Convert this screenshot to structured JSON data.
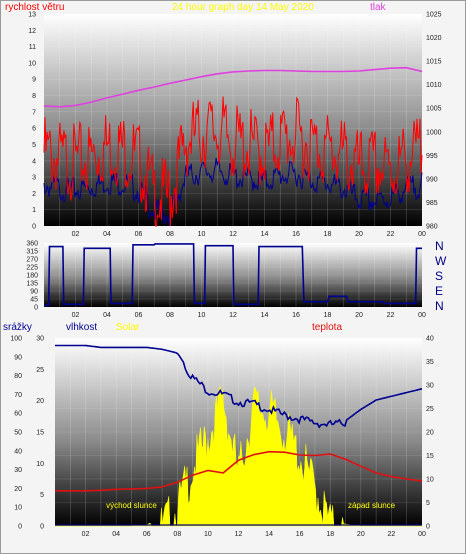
{
  "colors": {
    "wind": "#ff0000",
    "pressure": "#e040e0",
    "title": "#ffff00",
    "wind_dir": "#000090",
    "humidity": "#000090",
    "solar": "#ffff00",
    "temperature": "#e01010",
    "rain": "#000090"
  },
  "chart_data": [
    {
      "type": "line",
      "title": "24 hour graph day  14 May 2020",
      "ylabel": "rychlost větru",
      "y2label": "tlak",
      "x_ticks": [
        "02",
        "04",
        "06",
        "08",
        "10",
        "12",
        "14",
        "16",
        "18",
        "20",
        "22",
        "00"
      ],
      "y_ticks": [
        "0",
        "1",
        "2",
        "3",
        "4",
        "5",
        "6",
        "7",
        "8",
        "9",
        "10",
        "11",
        "12",
        "13"
      ],
      "y2_ticks": [
        "980",
        "985",
        "990",
        "995",
        "1000",
        "1005",
        "1010",
        "1015",
        "1020",
        "1025"
      ],
      "ylim": [
        0,
        13
      ],
      "y2lim": [
        980,
        1025
      ],
      "x_hours": [
        0,
        1,
        2,
        3,
        4,
        5,
        6,
        7,
        8,
        9,
        10,
        11,
        12,
        13,
        14,
        15,
        16,
        17,
        18,
        19,
        20,
        21,
        22,
        23,
        24
      ],
      "series": [
        {
          "name": "gust",
          "axis": "left",
          "values": [
            4.8,
            4.4,
            4.2,
            4.5,
            5.2,
            5.0,
            4.4,
            2.2,
            2.0,
            5.5,
            6.0,
            6.2,
            5.4,
            5.2,
            4.8,
            5.6,
            5.8,
            5.3,
            5.0,
            4.6,
            3.8,
            4.0,
            3.6,
            4.4,
            4.8
          ]
        },
        {
          "name": "average",
          "axis": "left",
          "values": [
            2.6,
            2.4,
            2.3,
            2.5,
            2.8,
            2.7,
            2.3,
            1.0,
            0.8,
            3.1,
            3.4,
            3.5,
            3.1,
            3.0,
            2.8,
            3.2,
            3.3,
            2.9,
            2.7,
            2.4,
            1.7,
            1.6,
            1.8,
            2.4,
            2.6
          ]
        },
        {
          "name": "pressure",
          "axis": "right",
          "values": [
            1005.5,
            1005.3,
            1005.6,
            1006.3,
            1007.2,
            1008.0,
            1008.8,
            1009.5,
            1010.3,
            1011.0,
            1011.7,
            1012.3,
            1012.7,
            1012.9,
            1013.0,
            1013.0,
            1012.9,
            1012.8,
            1012.8,
            1012.8,
            1012.9,
            1013.2,
            1013.5,
            1013.6,
            1012.8
          ]
        }
      ]
    },
    {
      "type": "line",
      "ylabel": "",
      "x_ticks": [
        "02",
        "04",
        "06",
        "08",
        "10",
        "12",
        "14",
        "16",
        "18",
        "20",
        "22",
        "00"
      ],
      "y_ticks": [
        "0",
        "45",
        "90",
        "135",
        "180",
        "225",
        "270",
        "315",
        "360"
      ],
      "ylim": [
        0,
        360
      ],
      "direction_labels": [
        "N",
        "W",
        "S",
        "E",
        "N"
      ],
      "series": [
        {
          "name": "wind direction",
          "x_hours": [
            0,
            0.3,
            0.35,
            1.2,
            1.25,
            2.5,
            2.55,
            4.2,
            4.25,
            5.6,
            5.65,
            7.0,
            7.05,
            9.5,
            9.55,
            10.2,
            10.25,
            12.0,
            12.05,
            13.6,
            13.65,
            16.4,
            16.5,
            18.0,
            18.1,
            19.2,
            19.3,
            21.5,
            21.6,
            23.6,
            23.65,
            24.0
          ],
          "values": [
            10,
            10,
            340,
            340,
            15,
            15,
            330,
            330,
            20,
            20,
            350,
            350,
            355,
            355,
            20,
            20,
            345,
            345,
            15,
            15,
            340,
            340,
            30,
            30,
            60,
            60,
            30,
            30,
            20,
            20,
            330,
            330
          ]
        }
      ]
    },
    {
      "type": "line",
      "legend": [
        "srážky",
        "vlhkost",
        "Solar",
        "teplota"
      ],
      "x_ticks": [
        "02",
        "04",
        "06",
        "08",
        "10",
        "12",
        "14",
        "16",
        "18",
        "20",
        "22",
        "00"
      ],
      "y_ticks_far_left": [
        "0",
        "10",
        "20",
        "30",
        "40",
        "50",
        "60",
        "70",
        "80",
        "90",
        "100"
      ],
      "y_ticks_left": [
        "0",
        "5",
        "10",
        "15",
        "20",
        "25",
        "30"
      ],
      "y_ticks_right": [
        "0",
        "5",
        "10",
        "15",
        "20",
        "25",
        "30",
        "35",
        "40"
      ],
      "humidity_lim": [
        0,
        100
      ],
      "rain_lim": [
        0,
        30
      ],
      "temperature_lim": [
        0,
        40
      ],
      "x_hours": [
        0,
        1,
        2,
        3,
        4,
        5,
        6,
        7,
        8,
        9,
        10,
        11,
        12,
        13,
        14,
        15,
        16,
        17,
        18,
        19,
        20,
        21,
        22,
        23,
        24
      ],
      "annotations": [
        {
          "text": "východ slunce",
          "hour": 5.0
        },
        {
          "text": "západ slunce",
          "hour": 20.7
        }
      ],
      "series": [
        {
          "name": "vlhkost",
          "axis": "far_left",
          "values": [
            96,
            96,
            96,
            95,
            95,
            95,
            95,
            94,
            92,
            80,
            73,
            71,
            67,
            66,
            63,
            60,
            58,
            56,
            55,
            56,
            62,
            67,
            69,
            71,
            73
          ]
        },
        {
          "name": "teplota",
          "axis": "right",
          "values": [
            7.5,
            7.5,
            7.5,
            7.6,
            7.8,
            7.9,
            8.0,
            8.3,
            9.3,
            10.8,
            11.8,
            11.3,
            14.0,
            15.2,
            15.8,
            15.7,
            15.1,
            15.0,
            15.3,
            14.2,
            12.7,
            11.3,
            10.5,
            10.0,
            9.6
          ]
        },
        {
          "name": "Solar",
          "axis": "left",
          "values": [
            0,
            0,
            0,
            0,
            0,
            0,
            0.2,
            1.5,
            4.5,
            11,
            16,
            22,
            10,
            21,
            20,
            17,
            13,
            8,
            2,
            0.3,
            0,
            0,
            0,
            0,
            0
          ]
        },
        {
          "name": "srážky",
          "axis": "left",
          "values": [
            0,
            0,
            0,
            0,
            0,
            0,
            0,
            0,
            0,
            0,
            0,
            0,
            0,
            0,
            0,
            0,
            0,
            0,
            0,
            0,
            0,
            0,
            0,
            0,
            0
          ]
        }
      ]
    }
  ]
}
